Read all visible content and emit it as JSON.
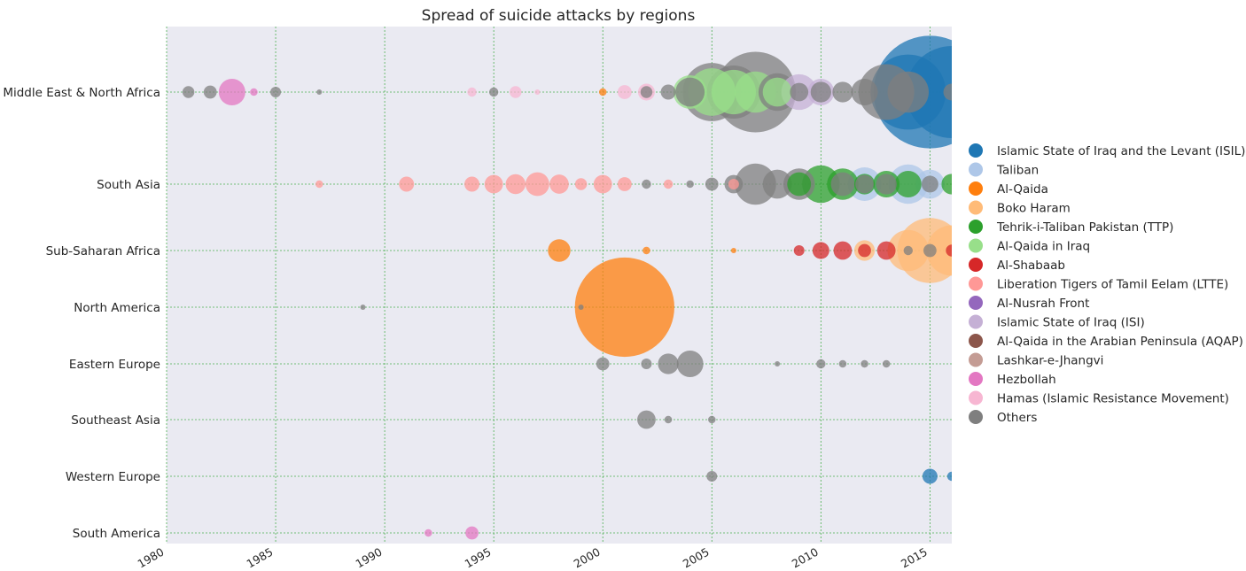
{
  "chart_data": {
    "type": "scatter",
    "title": "Spread of suicide attacks by regions",
    "xlabel": "",
    "ylabel": "",
    "xlim": [
      1980,
      2016
    ],
    "x_ticks": [
      "1980",
      "1985",
      "1990",
      "1995",
      "2000",
      "2005",
      "2010",
      "2015"
    ],
    "categories": [
      "Middle East & North Africa",
      "South Asia",
      "Sub-Saharan Africa",
      "North America",
      "Eastern Europe",
      "Southeast Asia",
      "Western Europe",
      "South America"
    ],
    "grid": true,
    "legend_position": "right",
    "size_encoding": "number of attacks (bubble area, estimated)",
    "series": [
      {
        "name": "Islamic State of Iraq and the Levant (ISIL)",
        "color": "#1f77b4",
        "points": [
          {
            "x": 2014,
            "region": "Middle East & North Africa",
            "size": 200
          },
          {
            "x": 2015,
            "region": "Middle East & North Africa",
            "size": 450
          },
          {
            "x": 2016,
            "region": "Middle East & North Africa",
            "size": 300
          },
          {
            "x": 2015,
            "region": "Western Europe",
            "size": 8
          },
          {
            "x": 2016,
            "region": "Western Europe",
            "size": 3
          }
        ]
      },
      {
        "name": "Taliban",
        "color": "#aec7e8",
        "points": [
          {
            "x": 2012,
            "region": "South Asia",
            "size": 40
          },
          {
            "x": 2014,
            "region": "South Asia",
            "size": 55
          },
          {
            "x": 2015,
            "region": "South Asia",
            "size": 30
          }
        ]
      },
      {
        "name": "Al-Qaida",
        "color": "#ff7f0e",
        "points": [
          {
            "x": 1998,
            "region": "Sub-Saharan Africa",
            "size": 18
          },
          {
            "x": 2000,
            "region": "Middle East & North Africa",
            "size": 2
          },
          {
            "x": 2001,
            "region": "North America",
            "size": 350
          },
          {
            "x": 2002,
            "region": "Sub-Saharan Africa",
            "size": 2
          },
          {
            "x": 2006,
            "region": "Sub-Saharan Africa",
            "size": 1
          }
        ]
      },
      {
        "name": "Boko Haram",
        "color": "#ffbb78",
        "points": [
          {
            "x": 2012,
            "region": "Sub-Saharan Africa",
            "size": 15
          },
          {
            "x": 2014,
            "region": "Sub-Saharan Africa",
            "size": 60
          },
          {
            "x": 2015,
            "region": "Sub-Saharan Africa",
            "size": 150
          },
          {
            "x": 2016,
            "region": "Sub-Saharan Africa",
            "size": 90
          }
        ]
      },
      {
        "name": "Tehrik-i-Taliban Pakistan (TTP)",
        "color": "#2ca02c",
        "points": [
          {
            "x": 2009,
            "region": "South Asia",
            "size": 20
          },
          {
            "x": 2010,
            "region": "South Asia",
            "size": 50
          },
          {
            "x": 2011,
            "region": "South Asia",
            "size": 35
          },
          {
            "x": 2012,
            "region": "South Asia",
            "size": 15
          },
          {
            "x": 2013,
            "region": "South Asia",
            "size": 25
          },
          {
            "x": 2014,
            "region": "South Asia",
            "size": 25
          },
          {
            "x": 2016,
            "region": "South Asia",
            "size": 15
          }
        ]
      },
      {
        "name": "Al-Qaida in Iraq",
        "color": "#98df8a",
        "points": [
          {
            "x": 2004,
            "region": "Middle East & North Africa",
            "size": 40
          },
          {
            "x": 2005,
            "region": "Middle East & North Africa",
            "size": 80
          },
          {
            "x": 2006,
            "region": "Middle East & North Africa",
            "size": 70
          },
          {
            "x": 2007,
            "region": "Middle East & North Africa",
            "size": 60
          },
          {
            "x": 2008,
            "region": "Middle East & North Africa",
            "size": 30
          }
        ]
      },
      {
        "name": "Al-Shabaab",
        "color": "#d62728",
        "points": [
          {
            "x": 2009,
            "region": "Sub-Saharan Africa",
            "size": 4
          },
          {
            "x": 2010,
            "region": "Sub-Saharan Africa",
            "size": 10
          },
          {
            "x": 2011,
            "region": "Sub-Saharan Africa",
            "size": 12
          },
          {
            "x": 2012,
            "region": "Sub-Saharan Africa",
            "size": 6
          },
          {
            "x": 2013,
            "region": "Sub-Saharan Africa",
            "size": 12
          },
          {
            "x": 2016,
            "region": "Sub-Saharan Africa",
            "size": 5
          }
        ]
      },
      {
        "name": "Liberation Tigers of Tamil Eelam (LTTE)",
        "color": "#ff9896",
        "points": [
          {
            "x": 1987,
            "region": "South Asia",
            "size": 2
          },
          {
            "x": 1991,
            "region": "South Asia",
            "size": 8
          },
          {
            "x": 1994,
            "region": "South Asia",
            "size": 8
          },
          {
            "x": 1995,
            "region": "South Asia",
            "size": 12
          },
          {
            "x": 1996,
            "region": "South Asia",
            "size": 14
          },
          {
            "x": 1997,
            "region": "South Asia",
            "size": 20
          },
          {
            "x": 1998,
            "region": "South Asia",
            "size": 13
          },
          {
            "x": 1999,
            "region": "South Asia",
            "size": 5
          },
          {
            "x": 2000,
            "region": "South Asia",
            "size": 12
          },
          {
            "x": 2001,
            "region": "South Asia",
            "size": 7
          },
          {
            "x": 2003,
            "region": "South Asia",
            "size": 3
          },
          {
            "x": 2006,
            "region": "South Asia",
            "size": 4
          }
        ]
      },
      {
        "name": "Al-Nusrah Front",
        "color": "#9467bd",
        "points": []
      },
      {
        "name": "Islamic State of Iraq (ISI)",
        "color": "#c5b0d5",
        "points": [
          {
            "x": 2009,
            "region": "Middle East & North Africa",
            "size": 45
          },
          {
            "x": 2010,
            "region": "Middle East & North Africa",
            "size": 25
          }
        ]
      },
      {
        "name": "Al-Qaida in the Arabian Peninsula (AQAP)",
        "color": "#8c564b",
        "points": []
      },
      {
        "name": "Lashkar-e-Jhangvi",
        "color": "#c49c94",
        "points": []
      },
      {
        "name": "Hezbollah",
        "color": "#e377c2",
        "points": [
          {
            "x": 1983,
            "region": "Middle East & North Africa",
            "size": 25
          },
          {
            "x": 1984,
            "region": "Middle East & North Africa",
            "size": 2
          },
          {
            "x": 1992,
            "region": "South America",
            "size": 2
          },
          {
            "x": 1994,
            "region": "South America",
            "size": 6
          }
        ]
      },
      {
        "name": "Hamas (Islamic Resistance Movement)",
        "color": "#f7b6d2",
        "points": [
          {
            "x": 1994,
            "region": "Middle East & North Africa",
            "size": 3
          },
          {
            "x": 1996,
            "region": "Middle East & North Africa",
            "size": 5
          },
          {
            "x": 1997,
            "region": "Middle East & North Africa",
            "size": 1
          },
          {
            "x": 2001,
            "region": "Middle East & North Africa",
            "size": 7
          },
          {
            "x": 2002,
            "region": "Middle East & North Africa",
            "size": 10
          }
        ]
      },
      {
        "name": "Others",
        "color": "#7f7f7f",
        "points": [
          {
            "x": 1981,
            "region": "Middle East & North Africa",
            "size": 5
          },
          {
            "x": 1982,
            "region": "Middle East & North Africa",
            "size": 6
          },
          {
            "x": 1985,
            "region": "Middle East & North Africa",
            "size": 4
          },
          {
            "x": 1987,
            "region": "Middle East & North Africa",
            "size": 1
          },
          {
            "x": 1995,
            "region": "Middle East & North Africa",
            "size": 3
          },
          {
            "x": 2002,
            "region": "Middle East & North Africa",
            "size": 5
          },
          {
            "x": 2003,
            "region": "Middle East & North Africa",
            "size": 8
          },
          {
            "x": 2004,
            "region": "Middle East & North Africa",
            "size": 30
          },
          {
            "x": 2005,
            "region": "Middle East & North Africa",
            "size": 120
          },
          {
            "x": 2006,
            "region": "Middle East & North Africa",
            "size": 100
          },
          {
            "x": 2007,
            "region": "Middle East & North Africa",
            "size": 230
          },
          {
            "x": 2008,
            "region": "Middle East & North Africa",
            "size": 50
          },
          {
            "x": 2009,
            "region": "Middle East & North Africa",
            "size": 12
          },
          {
            "x": 2010,
            "region": "Middle East & North Africa",
            "size": 15
          },
          {
            "x": 2011,
            "region": "Middle East & North Africa",
            "size": 15
          },
          {
            "x": 2012,
            "region": "Middle East & North Africa",
            "size": 25
          },
          {
            "x": 2013,
            "region": "Middle East & North Africa",
            "size": 110
          },
          {
            "x": 2014,
            "region": "Middle East & North Africa",
            "size": 60
          },
          {
            "x": 2016,
            "region": "Middle East & North Africa",
            "size": 10
          },
          {
            "x": 1989,
            "region": "North America",
            "size": 1
          },
          {
            "x": 1999,
            "region": "North America",
            "size": 1
          },
          {
            "x": 2000,
            "region": "Eastern Europe",
            "size": 6
          },
          {
            "x": 2002,
            "region": "Eastern Europe",
            "size": 4
          },
          {
            "x": 2003,
            "region": "Eastern Europe",
            "size": 15
          },
          {
            "x": 2004,
            "region": "Eastern Europe",
            "size": 25
          },
          {
            "x": 2008,
            "region": "Eastern Europe",
            "size": 1
          },
          {
            "x": 2010,
            "region": "Eastern Europe",
            "size": 3
          },
          {
            "x": 2011,
            "region": "Eastern Europe",
            "size": 2
          },
          {
            "x": 2012,
            "region": "Eastern Europe",
            "size": 2
          },
          {
            "x": 2013,
            "region": "Eastern Europe",
            "size": 2
          },
          {
            "x": 2002,
            "region": "Southeast Asia",
            "size": 12
          },
          {
            "x": 2003,
            "region": "Southeast Asia",
            "size": 2
          },
          {
            "x": 2005,
            "region": "Southeast Asia",
            "size": 2
          },
          {
            "x": 2005,
            "region": "Western Europe",
            "size": 4
          },
          {
            "x": 2002,
            "region": "South Asia",
            "size": 3
          },
          {
            "x": 2004,
            "region": "South Asia",
            "size": 2
          },
          {
            "x": 2005,
            "region": "South Asia",
            "size": 6
          },
          {
            "x": 2006,
            "region": "South Asia",
            "size": 12
          },
          {
            "x": 2007,
            "region": "South Asia",
            "size": 60
          },
          {
            "x": 2008,
            "region": "South Asia",
            "size": 30
          },
          {
            "x": 2009,
            "region": "South Asia",
            "size": 35
          },
          {
            "x": 2011,
            "region": "South Asia",
            "size": 20
          },
          {
            "x": 2012,
            "region": "South Asia",
            "size": 12
          },
          {
            "x": 2013,
            "region": "South Asia",
            "size": 15
          },
          {
            "x": 2015,
            "region": "South Asia",
            "size": 10
          },
          {
            "x": 2014,
            "region": "Sub-Saharan Africa",
            "size": 3
          },
          {
            "x": 2015,
            "region": "Sub-Saharan Africa",
            "size": 6
          }
        ]
      }
    ]
  }
}
